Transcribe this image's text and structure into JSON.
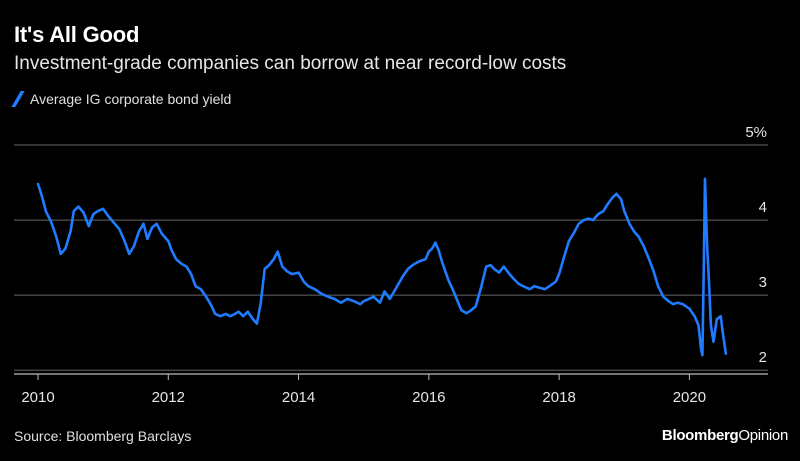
{
  "header": {
    "title": "It's All Good",
    "subtitle": "Investment-grade companies can borrow at near record-low costs"
  },
  "legend": {
    "label": "Average IG corporate bond yield"
  },
  "footer": {
    "source": "Source: Bloomberg Barclays",
    "brand_part1": "Bloomberg",
    "brand_part2": "Opinion"
  },
  "colors": {
    "background": "#000000",
    "series": "#1f7bff",
    "grid": "#666666",
    "text": "#ffffff"
  },
  "chart_data": {
    "type": "line",
    "title": "It's All Good",
    "subtitle": "Investment-grade companies can borrow at near record-low costs",
    "xlabel": "",
    "ylabel": "",
    "xlim": [
      2010.0,
      2020.7
    ],
    "ylim": [
      1.95,
      5.0
    ],
    "x_ticks": [
      2010,
      2012,
      2014,
      2016,
      2018,
      2020
    ],
    "x_tick_labels": [
      "2010",
      "2012",
      "2014",
      "2016",
      "2018",
      "2020"
    ],
    "y_ticks": [
      2,
      3,
      4,
      5
    ],
    "y_tick_labels": [
      "2",
      "3",
      "4",
      "5%"
    ],
    "grid": true,
    "legend_position": "top-left",
    "series": [
      {
        "name": "Average IG corporate bond yield",
        "points": [
          [
            2010.0,
            4.48
          ],
          [
            2010.06,
            4.32
          ],
          [
            2010.12,
            4.12
          ],
          [
            2010.2,
            3.98
          ],
          [
            2010.28,
            3.78
          ],
          [
            2010.35,
            3.55
          ],
          [
            2010.42,
            3.62
          ],
          [
            2010.5,
            3.85
          ],
          [
            2010.55,
            4.12
          ],
          [
            2010.62,
            4.18
          ],
          [
            2010.7,
            4.1
          ],
          [
            2010.78,
            3.92
          ],
          [
            2010.85,
            4.08
          ],
          [
            2010.92,
            4.12
          ],
          [
            2011.0,
            4.15
          ],
          [
            2011.08,
            4.05
          ],
          [
            2011.15,
            3.98
          ],
          [
            2011.25,
            3.88
          ],
          [
            2011.33,
            3.72
          ],
          [
            2011.4,
            3.55
          ],
          [
            2011.47,
            3.65
          ],
          [
            2011.55,
            3.85
          ],
          [
            2011.62,
            3.95
          ],
          [
            2011.68,
            3.75
          ],
          [
            2011.75,
            3.9
          ],
          [
            2011.82,
            3.95
          ],
          [
            2011.9,
            3.82
          ],
          [
            2012.0,
            3.72
          ],
          [
            2012.05,
            3.6
          ],
          [
            2012.12,
            3.48
          ],
          [
            2012.2,
            3.42
          ],
          [
            2012.28,
            3.38
          ],
          [
            2012.35,
            3.28
          ],
          [
            2012.42,
            3.12
          ],
          [
            2012.5,
            3.08
          ],
          [
            2012.58,
            2.98
          ],
          [
            2012.65,
            2.88
          ],
          [
            2012.72,
            2.75
          ],
          [
            2012.8,
            2.72
          ],
          [
            2012.88,
            2.75
          ],
          [
            2012.95,
            2.72
          ],
          [
            2013.0,
            2.74
          ],
          [
            2013.08,
            2.78
          ],
          [
            2013.15,
            2.72
          ],
          [
            2013.22,
            2.78
          ],
          [
            2013.3,
            2.68
          ],
          [
            2013.36,
            2.62
          ],
          [
            2013.42,
            2.9
          ],
          [
            2013.48,
            3.35
          ],
          [
            2013.55,
            3.4
          ],
          [
            2013.62,
            3.48
          ],
          [
            2013.68,
            3.58
          ],
          [
            2013.75,
            3.38
          ],
          [
            2013.82,
            3.32
          ],
          [
            2013.9,
            3.28
          ],
          [
            2014.0,
            3.3
          ],
          [
            2014.08,
            3.18
          ],
          [
            2014.15,
            3.12
          ],
          [
            2014.25,
            3.08
          ],
          [
            2014.35,
            3.02
          ],
          [
            2014.45,
            2.98
          ],
          [
            2014.55,
            2.95
          ],
          [
            2014.65,
            2.9
          ],
          [
            2014.75,
            2.95
          ],
          [
            2014.85,
            2.92
          ],
          [
            2014.95,
            2.88
          ],
          [
            2015.0,
            2.92
          ],
          [
            2015.08,
            2.95
          ],
          [
            2015.15,
            2.98
          ],
          [
            2015.25,
            2.9
          ],
          [
            2015.32,
            3.05
          ],
          [
            2015.4,
            2.95
          ],
          [
            2015.5,
            3.1
          ],
          [
            2015.6,
            3.25
          ],
          [
            2015.68,
            3.35
          ],
          [
            2015.75,
            3.4
          ],
          [
            2015.85,
            3.45
          ],
          [
            2015.95,
            3.48
          ],
          [
            2016.0,
            3.58
          ],
          [
            2016.05,
            3.62
          ],
          [
            2016.1,
            3.7
          ],
          [
            2016.15,
            3.6
          ],
          [
            2016.2,
            3.45
          ],
          [
            2016.3,
            3.2
          ],
          [
            2016.38,
            3.05
          ],
          [
            2016.45,
            2.9
          ],
          [
            2016.5,
            2.8
          ],
          [
            2016.58,
            2.76
          ],
          [
            2016.65,
            2.8
          ],
          [
            2016.72,
            2.85
          ],
          [
            2016.8,
            3.1
          ],
          [
            2016.88,
            3.38
          ],
          [
            2016.95,
            3.4
          ],
          [
            2017.0,
            3.35
          ],
          [
            2017.08,
            3.3
          ],
          [
            2017.15,
            3.38
          ],
          [
            2017.22,
            3.3
          ],
          [
            2017.3,
            3.22
          ],
          [
            2017.38,
            3.15
          ],
          [
            2017.45,
            3.12
          ],
          [
            2017.55,
            3.08
          ],
          [
            2017.62,
            3.12
          ],
          [
            2017.7,
            3.1
          ],
          [
            2017.78,
            3.08
          ],
          [
            2017.85,
            3.12
          ],
          [
            2017.95,
            3.18
          ],
          [
            2018.0,
            3.28
          ],
          [
            2018.08,
            3.52
          ],
          [
            2018.15,
            3.72
          ],
          [
            2018.22,
            3.82
          ],
          [
            2018.3,
            3.95
          ],
          [
            2018.38,
            4.0
          ],
          [
            2018.45,
            4.02
          ],
          [
            2018.52,
            4.0
          ],
          [
            2018.6,
            4.08
          ],
          [
            2018.68,
            4.12
          ],
          [
            2018.75,
            4.22
          ],
          [
            2018.82,
            4.3
          ],
          [
            2018.88,
            4.35
          ],
          [
            2018.95,
            4.28
          ],
          [
            2019.0,
            4.12
          ],
          [
            2019.08,
            3.95
          ],
          [
            2019.15,
            3.85
          ],
          [
            2019.22,
            3.78
          ],
          [
            2019.3,
            3.65
          ],
          [
            2019.38,
            3.48
          ],
          [
            2019.45,
            3.32
          ],
          [
            2019.52,
            3.12
          ],
          [
            2019.6,
            2.98
          ],
          [
            2019.68,
            2.92
          ],
          [
            2019.75,
            2.88
          ],
          [
            2019.82,
            2.9
          ],
          [
            2019.9,
            2.88
          ],
          [
            2019.95,
            2.85
          ],
          [
            2020.0,
            2.82
          ],
          [
            2020.08,
            2.72
          ],
          [
            2020.14,
            2.6
          ],
          [
            2020.18,
            2.28
          ],
          [
            2020.2,
            2.2
          ],
          [
            2020.22,
            3.3
          ],
          [
            2020.24,
            4.55
          ],
          [
            2020.27,
            3.7
          ],
          [
            2020.3,
            3.2
          ],
          [
            2020.33,
            2.6
          ],
          [
            2020.37,
            2.38
          ],
          [
            2020.42,
            2.68
          ],
          [
            2020.48,
            2.72
          ],
          [
            2020.52,
            2.45
          ],
          [
            2020.56,
            2.22
          ]
        ]
      }
    ]
  }
}
